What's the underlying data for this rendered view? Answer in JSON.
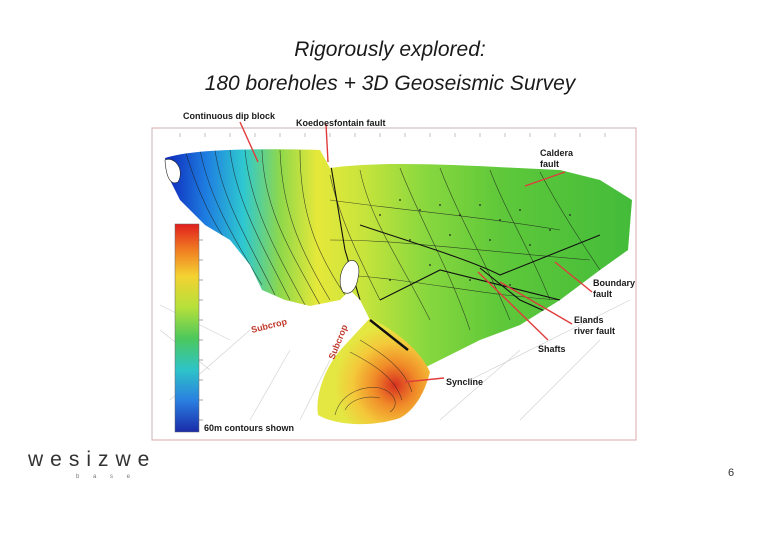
{
  "slide": {
    "title_line1": "Rigorously explored:",
    "title_line2": "180 boreholes + 3D Geoseismic Survey",
    "page_number": "6"
  },
  "logo": {
    "text": "wesizwe",
    "subtext": "b a s e"
  },
  "map": {
    "annotations": {
      "continuous_dip_block": "Continuous dip block",
      "koedoesfontain_fault": "Koedoesfontain fault",
      "caldera_fault_line1": "Caldera",
      "caldera_fault_line2": "fault",
      "boundary_fault_line1": "Boundary",
      "boundary_fault_line2": "fault",
      "elands_fault_line1": "Elands",
      "elands_fault_line2": "river fault",
      "shafts": "Shafts",
      "syncline": "Syncline",
      "subcrop_1": "Subcrop",
      "subcrop_2": "Subcrop",
      "contours_note": "60m contours shown"
    },
    "colors": {
      "annotation_text": "#1a1a1a",
      "subcrop_text": "#c0392b",
      "leader_line": "#e03c3c",
      "frame": "#d8a8a8"
    }
  }
}
